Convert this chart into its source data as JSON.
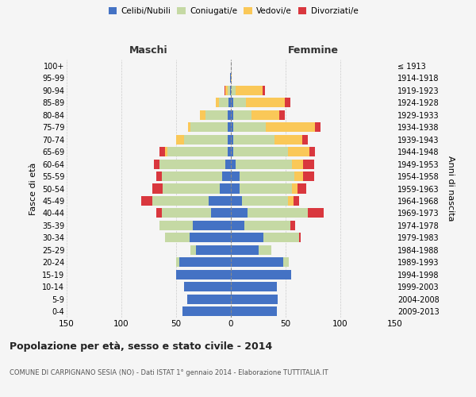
{
  "age_groups": [
    "0-4",
    "5-9",
    "10-14",
    "15-19",
    "20-24",
    "25-29",
    "30-34",
    "35-39",
    "40-44",
    "45-49",
    "50-54",
    "55-59",
    "60-64",
    "65-69",
    "70-74",
    "75-79",
    "80-84",
    "85-89",
    "90-94",
    "95-99",
    "100+"
  ],
  "birth_years": [
    "2009-2013",
    "2004-2008",
    "1999-2003",
    "1994-1998",
    "1989-1993",
    "1984-1988",
    "1979-1983",
    "1974-1978",
    "1969-1973",
    "1964-1968",
    "1959-1963",
    "1954-1958",
    "1949-1953",
    "1944-1948",
    "1939-1943",
    "1934-1938",
    "1929-1933",
    "1924-1928",
    "1919-1923",
    "1914-1918",
    "≤ 1913"
  ],
  "maschi": {
    "celibi": [
      44,
      40,
      43,
      50,
      47,
      32,
      38,
      35,
      18,
      20,
      10,
      8,
      5,
      3,
      3,
      3,
      3,
      2,
      1,
      1,
      0
    ],
    "coniugati": [
      0,
      0,
      0,
      0,
      3,
      5,
      22,
      30,
      45,
      52,
      52,
      55,
      60,
      55,
      40,
      34,
      20,
      9,
      2,
      0,
      0
    ],
    "vedovi": [
      0,
      0,
      0,
      0,
      0,
      0,
      0,
      0,
      0,
      0,
      0,
      0,
      0,
      2,
      7,
      2,
      5,
      3,
      2,
      0,
      0
    ],
    "divorziati": [
      0,
      0,
      0,
      0,
      0,
      0,
      0,
      0,
      5,
      10,
      10,
      5,
      5,
      5,
      0,
      0,
      0,
      0,
      1,
      0,
      0
    ]
  },
  "femmine": {
    "nubili": [
      42,
      43,
      42,
      55,
      48,
      25,
      30,
      12,
      15,
      10,
      8,
      8,
      4,
      2,
      2,
      2,
      2,
      2,
      0,
      0,
      0
    ],
    "coniugate": [
      0,
      0,
      0,
      0,
      5,
      12,
      32,
      42,
      55,
      42,
      48,
      50,
      52,
      50,
      38,
      30,
      17,
      12,
      4,
      0,
      0
    ],
    "vedove": [
      0,
      0,
      0,
      0,
      0,
      0,
      0,
      0,
      0,
      5,
      5,
      8,
      10,
      20,
      25,
      45,
      25,
      35,
      25,
      1,
      0
    ],
    "divorziate": [
      0,
      0,
      0,
      0,
      0,
      0,
      2,
      5,
      15,
      5,
      8,
      10,
      10,
      5,
      5,
      5,
      5,
      5,
      2,
      0,
      0
    ]
  },
  "colors": {
    "celibi": "#4472C4",
    "coniugati": "#C5D9A4",
    "vedovi": "#FAC858",
    "divorziati": "#D9373E"
  },
  "xlim": 150,
  "title": "Popolazione per età, sesso e stato civile - 2014",
  "subtitle": "COMUNE DI CARPIGNANO SESIA (NO) - Dati ISTAT 1° gennaio 2014 - Elaborazione TUTTITALIA.IT",
  "ylabel_left": "Fasce di età",
  "ylabel_right": "Anni di nascita",
  "label_maschi": "Maschi",
  "label_femmine": "Femmine",
  "bg_color": "#f5f5f5",
  "grid_color": "#cccccc"
}
